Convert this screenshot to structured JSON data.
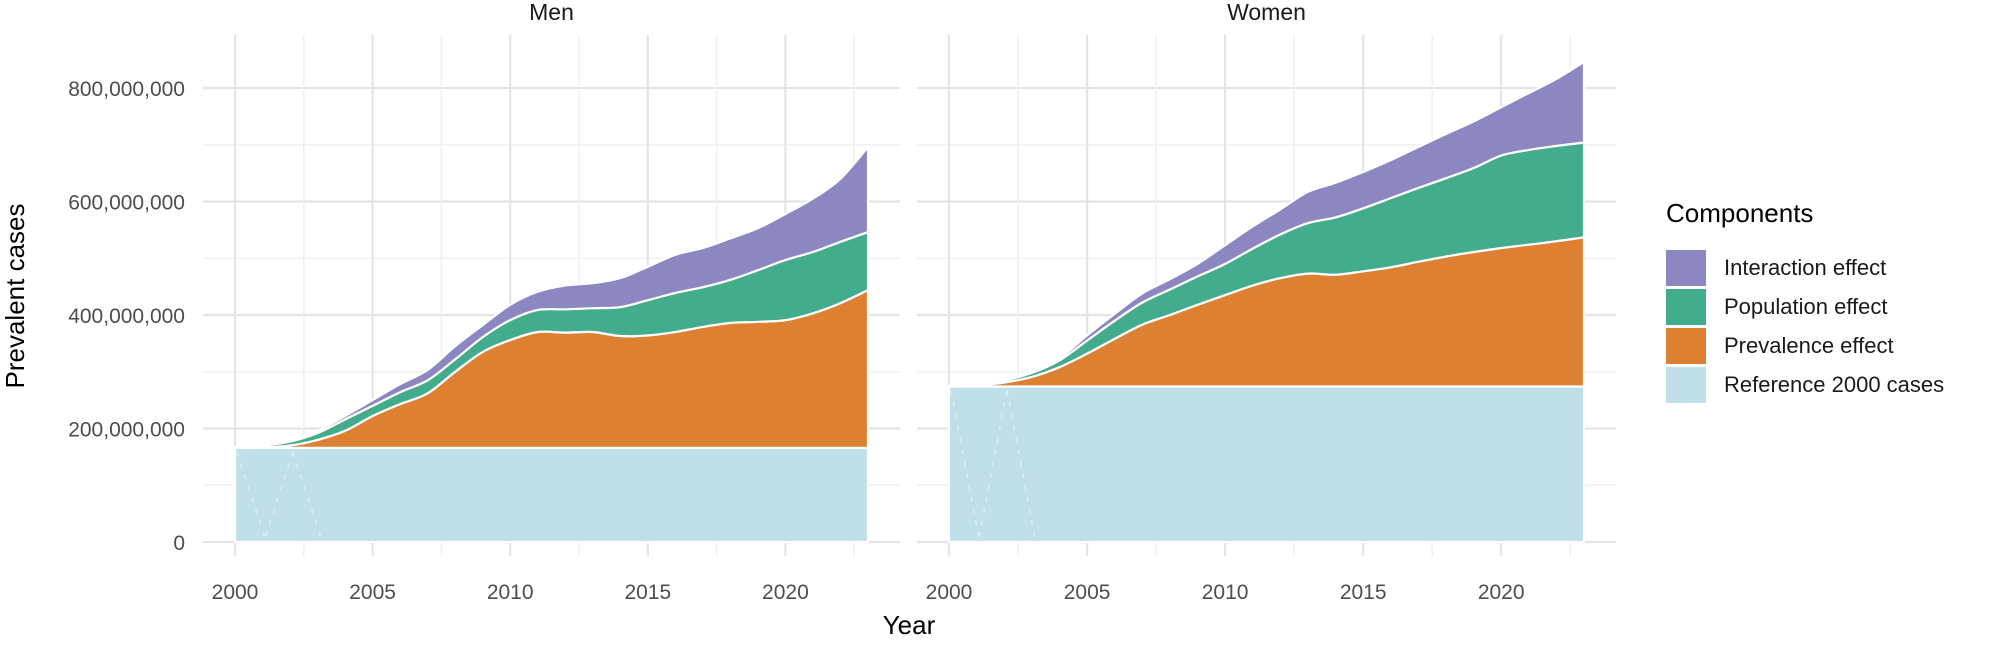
{
  "chart_data": {
    "type": "area",
    "stacked": true,
    "xlabel": "Year",
    "ylabel": "Prevalent cases",
    "x": [
      2000,
      2001,
      2002,
      2003,
      2004,
      2005,
      2006,
      2007,
      2008,
      2009,
      2010,
      2011,
      2012,
      2013,
      2014,
      2015,
      2016,
      2017,
      2018,
      2019,
      2020,
      2021,
      2022,
      2023
    ],
    "x_major_ticks": [
      2000,
      2005,
      2010,
      2015,
      2020
    ],
    "x_minor_ticks": [
      2002.5,
      2007.5,
      2012.5,
      2017.5,
      2022.5
    ],
    "xlim": [
      1998.85,
      2024.15
    ],
    "y_ticks": [
      {
        "value_millions": 0,
        "label": "0"
      },
      {
        "value_millions": 200,
        "label": "200,000,000"
      },
      {
        "value_millions": 400,
        "label": "400,000,000"
      },
      {
        "value_millions": 600,
        "label": "600,000,000"
      },
      {
        "value_millions": 800,
        "label": "800,000,000"
      }
    ],
    "y_minor_ticks_millions": [
      100,
      300,
      500,
      700
    ],
    "ylim_millions": [
      0,
      893
    ],
    "values_unit_multiplier": 1000000,
    "grid": "on",
    "legend": {
      "title": "Components",
      "position": "right",
      "entries": [
        {
          "label": "Interaction effect",
          "color": "#8C86C1"
        },
        {
          "label": "Population effect",
          "color": "#42AC8C"
        },
        {
          "label": "Prevalence effect",
          "color": "#DE8031"
        },
        {
          "label": "Reference 2000 cases",
          "color": "#BFDFE9"
        }
      ]
    },
    "series_order_bottom_to_top": [
      "Reference 2000 cases",
      "Prevalence effect",
      "Population effect",
      "Interaction effect"
    ],
    "facets": [
      {
        "label": "Men",
        "series": [
          {
            "name": "Reference 2000 cases",
            "color": "#BFDFE9",
            "values_millions": [
              166,
              166,
              166,
              166,
              166,
              166,
              166,
              166,
              166,
              166,
              166,
              166,
              166,
              166,
              166,
              166,
              166,
              166,
              166,
              166,
              166,
              166,
              166,
              166
            ]
          },
          {
            "name": "Prevalence effect",
            "color": "#DE8031",
            "values_millions": [
              0,
              1,
              4,
              14,
              30,
              56,
              77,
              96,
              134,
              169,
              190,
              204,
              203,
              204,
              197,
              198,
              204,
              213,
              220,
              222,
              225,
              237,
              255,
              278
            ]
          },
          {
            "name": "Population effect",
            "color": "#42AC8C",
            "values_millions": [
              1,
              3,
              7,
              12,
              20,
              18,
              21,
              23,
              22,
              26,
              35,
              39,
              41,
              42,
              51,
              62,
              69,
              70,
              76,
              91,
              106,
              108,
              108,
              102
            ]
          },
          {
            "name": "Interaction effect",
            "color": "#8C86C1",
            "values_millions": [
              0,
              1,
              3,
              4,
              6,
              10,
              14,
              18,
              23,
              21,
              27,
              32,
              42,
              44,
              51,
              59,
              67,
              69,
              73,
              74,
              81,
              94,
              111,
              150
            ]
          }
        ]
      },
      {
        "label": "Women",
        "series": [
          {
            "name": "Reference 2000 cases",
            "color": "#BFDFE9",
            "values_millions": [
              274,
              274,
              274,
              274,
              274,
              274,
              274,
              274,
              274,
              274,
              274,
              274,
              274,
              274,
              274,
              274,
              274,
              274,
              274,
              274,
              274,
              274,
              274,
              274
            ]
          },
          {
            "name": "Prevalence effect",
            "color": "#DE8031",
            "values_millions": [
              0,
              2,
              7,
              17,
              34,
              58,
              84,
              109,
              126,
              144,
              161,
              178,
              191,
              199,
              197,
              203,
              210,
              220,
              229,
              237,
              244,
              250,
              256,
              263
            ]
          },
          {
            "name": "Population effect",
            "color": "#42AC8C",
            "values_millions": [
              1,
              2,
              4,
              7,
              12,
              23,
              32,
              39,
              45,
              50,
              55,
              65,
              77,
              89,
              101,
              111,
              122,
              130,
              138,
              148,
              163,
              167,
              168,
              167
            ]
          },
          {
            "name": "Interaction effect",
            "color": "#8C86C1",
            "values_millions": [
              0,
              1,
              2,
              3,
              4,
              9,
              12,
              16,
              18,
              22,
              33,
              39,
              44,
              55,
              61,
              64,
              67,
              72,
              78,
              82,
              85,
              100,
              118,
              142
            ]
          }
        ]
      }
    ],
    "style": {
      "area_border_color": "#ffffff",
      "grid_major_color": "#E4E4E4",
      "grid_minor_color": "#F0F0F0",
      "tick_label_color": "#4D4D4D",
      "title_color": "#000000",
      "facet_title_color": "#1a1a1a",
      "background": "#ffffff"
    }
  }
}
